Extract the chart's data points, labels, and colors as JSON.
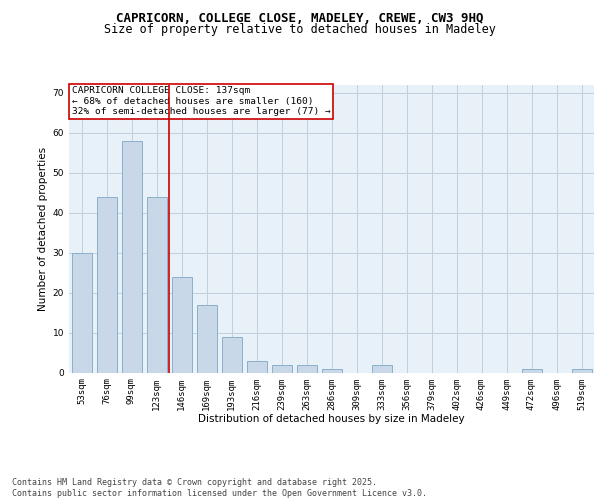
{
  "title1": "CAPRICORN, COLLEGE CLOSE, MADELEY, CREWE, CW3 9HQ",
  "title2": "Size of property relative to detached houses in Madeley",
  "xlabel": "Distribution of detached houses by size in Madeley",
  "ylabel": "Number of detached properties",
  "categories": [
    "53sqm",
    "76sqm",
    "99sqm",
    "123sqm",
    "146sqm",
    "169sqm",
    "193sqm",
    "216sqm",
    "239sqm",
    "263sqm",
    "286sqm",
    "309sqm",
    "333sqm",
    "356sqm",
    "379sqm",
    "402sqm",
    "426sqm",
    "449sqm",
    "472sqm",
    "496sqm",
    "519sqm"
  ],
  "values": [
    30,
    44,
    58,
    44,
    24,
    17,
    9,
    3,
    2,
    2,
    1,
    0,
    2,
    0,
    0,
    0,
    0,
    0,
    1,
    0,
    1
  ],
  "bar_color": "#c8d8e8",
  "bar_edge_color": "#8ab0cc",
  "vline_x": 3.5,
  "vline_color": "#cc0000",
  "annotation_text": "CAPRICORN COLLEGE CLOSE: 137sqm\n← 68% of detached houses are smaller (160)\n32% of semi-detached houses are larger (77) →",
  "annotation_box_color": "#ffffff",
  "annotation_box_edge": "#cc0000",
  "ylim": [
    0,
    72
  ],
  "yticks": [
    0,
    10,
    20,
    30,
    40,
    50,
    60,
    70
  ],
  "grid_color": "#c0cfe0",
  "bg_color": "#e8f0f8",
  "footer_text": "Contains HM Land Registry data © Crown copyright and database right 2025.\nContains public sector information licensed under the Open Government Licence v3.0.",
  "title_fontsize": 9,
  "subtitle_fontsize": 8.5,
  "axis_label_fontsize": 7.5,
  "tick_fontsize": 6.5,
  "annotation_fontsize": 6.8,
  "footer_fontsize": 6.0
}
